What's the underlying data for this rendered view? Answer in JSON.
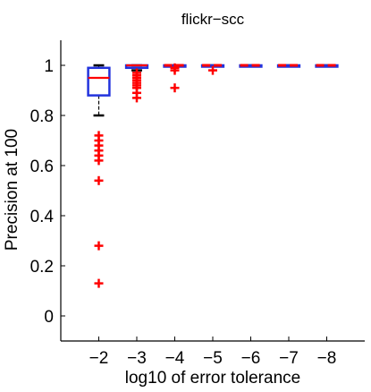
{
  "chart_data": {
    "type": "boxplot",
    "title": "flickr−scc",
    "xlabel": "log10 of error tolerance",
    "ylabel": "Precision at 100",
    "categories": [
      "−2",
      "−3",
      "−4",
      "−5",
      "−6",
      "−7",
      "−8"
    ],
    "ylim": [
      -0.1,
      1.1
    ],
    "yticks": [
      0,
      0.2,
      0.4,
      0.6,
      0.8,
      1
    ],
    "ytick_labels": [
      "0",
      "0.2",
      "0.4",
      "0.6",
      "0.8",
      "1"
    ],
    "grid": false,
    "box_color": "#2233dd",
    "median_color": "#ff0000",
    "whisker_color": "#000000",
    "outlier_color": "#ff0000",
    "boxes": [
      {
        "q1": 0.88,
        "median": 0.95,
        "q3": 0.99,
        "whisker_low": 0.8,
        "whisker_high": 1.0,
        "outliers": [
          0.72,
          0.7,
          0.68,
          0.66,
          0.64,
          0.62,
          0.54,
          0.28,
          0.13
        ]
      },
      {
        "q1": 0.99,
        "median": 1.0,
        "q3": 1.0,
        "whisker_low": 0.98,
        "whisker_high": 1.0,
        "outliers": [
          0.97,
          0.96,
          0.95,
          0.94,
          0.93,
          0.92,
          0.91,
          0.89,
          0.87
        ]
      },
      {
        "q1": 1.0,
        "median": 1.0,
        "q3": 1.0,
        "whisker_low": 1.0,
        "whisker_high": 1.0,
        "outliers": [
          0.99,
          0.98,
          0.91
        ]
      },
      {
        "q1": 1.0,
        "median": 1.0,
        "q3": 1.0,
        "whisker_low": 1.0,
        "whisker_high": 1.0,
        "outliers": [
          0.98
        ]
      },
      {
        "q1": 1.0,
        "median": 1.0,
        "q3": 1.0,
        "whisker_low": 1.0,
        "whisker_high": 1.0,
        "outliers": []
      },
      {
        "q1": 1.0,
        "median": 1.0,
        "q3": 1.0,
        "whisker_low": 1.0,
        "whisker_high": 1.0,
        "outliers": []
      },
      {
        "q1": 1.0,
        "median": 1.0,
        "q3": 1.0,
        "whisker_low": 1.0,
        "whisker_high": 1.0,
        "outliers": []
      }
    ]
  }
}
